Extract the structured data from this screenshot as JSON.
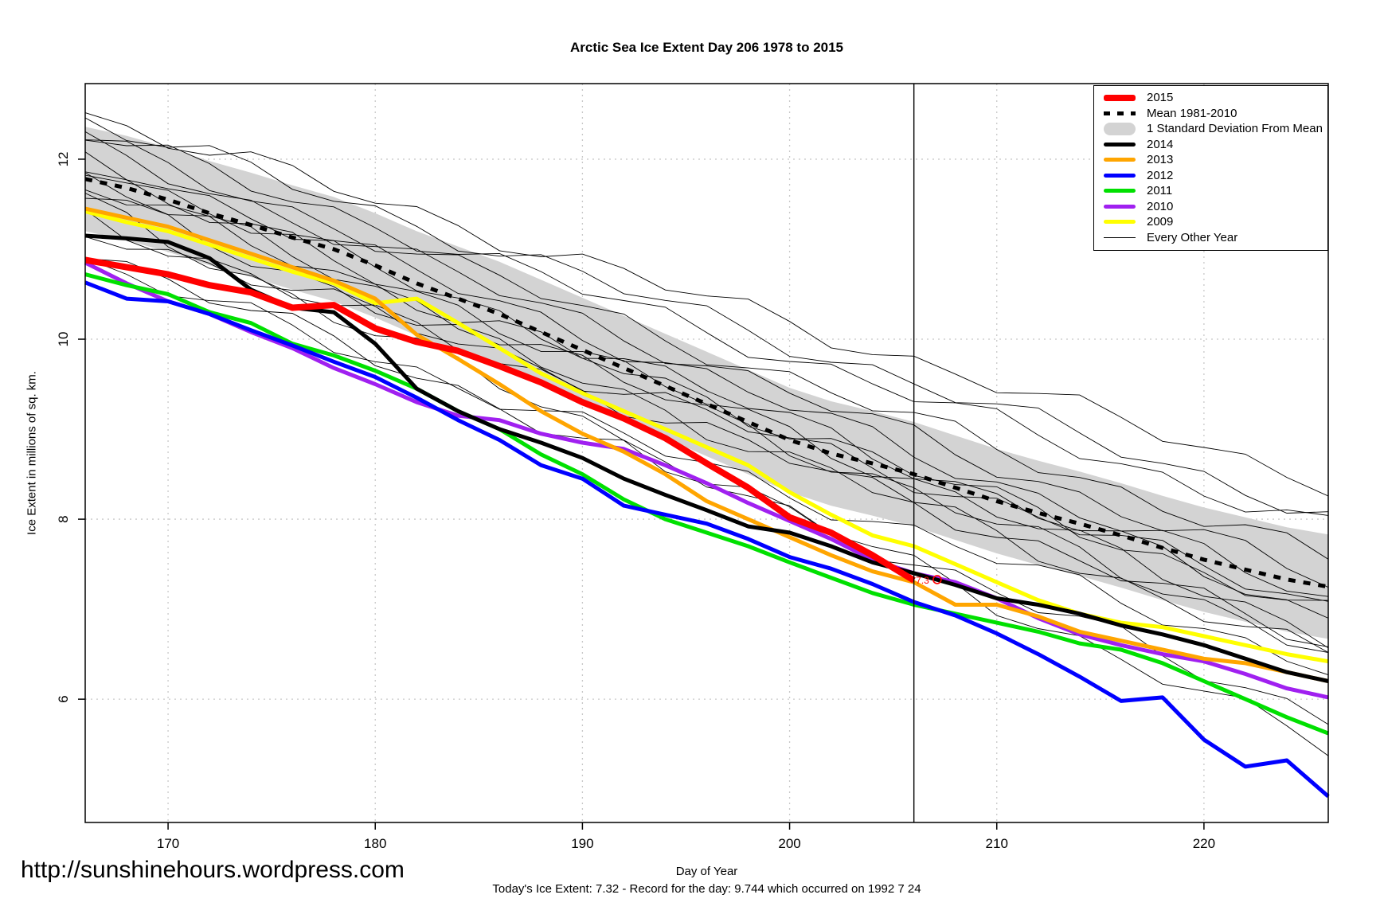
{
  "page": {
    "title": "Arctic Sea Ice Extent Day 206 1978 to 2015",
    "url_watermark": "http://sunshinehours.wordpress.com",
    "footer_note": "Today's Ice Extent: 7.32  - Record for the day: 9.744 which occurred on 1992 7 24"
  },
  "chart_data": {
    "type": "line",
    "title": "Arctic Sea Ice Extent Day 206 1978 to 2015",
    "xlabel": "Day of Year",
    "ylabel": "Ice Extent in millions of sq. km.",
    "xlim": [
      166,
      226
    ],
    "ylim": [
      4.63,
      12.84
    ],
    "xticks": [
      170,
      180,
      190,
      200,
      210,
      220
    ],
    "yticks": [
      6,
      8,
      10,
      12
    ],
    "grid": "dotted",
    "grid_color": "#c8c8c8",
    "vline_x": 206,
    "annotation": {
      "label": "7.3",
      "x": 206.2,
      "y": 7.32,
      "color": "#ff0000",
      "marker": "open-circle"
    },
    "days": [
      166,
      168,
      170,
      172,
      174,
      176,
      178,
      180,
      182,
      184,
      186,
      188,
      190,
      192,
      194,
      196,
      198,
      200,
      202,
      204,
      206,
      208,
      210,
      212,
      214,
      216,
      218,
      220,
      222,
      224,
      226
    ],
    "series": [
      {
        "name": "2009",
        "color": "#ffff00",
        "width": 5,
        "values": [
          11.42,
          11.3,
          11.2,
          11.05,
          10.9,
          10.75,
          10.62,
          10.4,
          10.45,
          10.18,
          9.9,
          9.62,
          9.4,
          9.2,
          9.0,
          8.8,
          8.6,
          8.3,
          8.05,
          7.82,
          7.7,
          7.5,
          7.3,
          7.1,
          6.95,
          6.85,
          6.8,
          6.7,
          6.6,
          6.5,
          6.42
        ]
      },
      {
        "name": "2010",
        "color": "#a020f0",
        "width": 5,
        "values": [
          10.85,
          10.62,
          10.42,
          10.28,
          10.08,
          9.9,
          9.68,
          9.5,
          9.3,
          9.15,
          9.1,
          8.95,
          8.85,
          8.78,
          8.6,
          8.4,
          8.18,
          7.98,
          7.78,
          7.55,
          7.4,
          7.3,
          7.12,
          6.9,
          6.72,
          6.6,
          6.5,
          6.42,
          6.28,
          6.12,
          6.02
        ]
      },
      {
        "name": "2011",
        "color": "#00e000",
        "width": 5,
        "values": [
          10.72,
          10.6,
          10.5,
          10.3,
          10.18,
          9.95,
          9.82,
          9.65,
          9.45,
          9.2,
          9.0,
          8.72,
          8.5,
          8.22,
          8.0,
          7.85,
          7.7,
          7.52,
          7.35,
          7.18,
          7.05,
          6.95,
          6.85,
          6.75,
          6.62,
          6.55,
          6.4,
          6.2,
          6.0,
          5.8,
          5.62
        ]
      },
      {
        "name": "2012",
        "color": "#0000ff",
        "width": 5,
        "values": [
          10.63,
          10.45,
          10.42,
          10.28,
          10.1,
          9.93,
          9.75,
          9.58,
          9.35,
          9.1,
          8.88,
          8.6,
          8.45,
          8.15,
          8.05,
          7.95,
          7.78,
          7.58,
          7.45,
          7.28,
          7.08,
          6.93,
          6.73,
          6.5,
          6.25,
          5.98,
          6.02,
          5.55,
          5.25,
          5.32,
          4.92
        ]
      },
      {
        "name": "2013",
        "color": "#ffa500",
        "width": 5,
        "values": [
          11.45,
          11.35,
          11.25,
          11.1,
          10.95,
          10.8,
          10.65,
          10.45,
          10.05,
          9.78,
          9.5,
          9.2,
          8.95,
          8.75,
          8.5,
          8.2,
          8.0,
          7.8,
          7.6,
          7.42,
          7.3,
          7.05,
          7.05,
          6.92,
          6.75,
          6.65,
          6.55,
          6.45,
          6.4,
          6.3,
          6.2
        ]
      },
      {
        "name": "2014",
        "color": "#000000",
        "width": 5,
        "values": [
          11.15,
          11.12,
          11.08,
          10.9,
          10.55,
          10.35,
          10.3,
          9.95,
          9.45,
          9.2,
          9.0,
          8.85,
          8.68,
          8.45,
          8.27,
          8.1,
          7.92,
          7.85,
          7.7,
          7.52,
          7.4,
          7.27,
          7.12,
          7.05,
          6.95,
          6.82,
          6.72,
          6.6,
          6.45,
          6.3,
          6.2
        ]
      },
      {
        "name": "2015",
        "color": "#ff0000",
        "width": 8,
        "values": [
          10.88,
          10.8,
          10.72,
          10.6,
          10.52,
          10.35,
          10.38,
          10.12,
          9.97,
          9.87,
          9.7,
          9.52,
          9.3,
          9.12,
          8.9,
          8.62,
          8.35,
          8.02,
          7.85,
          7.6,
          7.32,
          null,
          null,
          null,
          null,
          null,
          null,
          null,
          null,
          null,
          null
        ]
      }
    ],
    "mean_series": {
      "name": "Mean 1981-2010",
      "color": "#000000",
      "width": 5,
      "dash": "9 10",
      "values": [
        11.78,
        11.68,
        11.55,
        11.4,
        11.27,
        11.13,
        11.0,
        10.82,
        10.62,
        10.45,
        10.28,
        10.08,
        9.88,
        9.68,
        9.48,
        9.28,
        9.08,
        8.88,
        8.73,
        8.62,
        8.5,
        8.35,
        8.2,
        8.07,
        7.95,
        7.82,
        7.68,
        7.55,
        7.44,
        7.33,
        7.25
      ]
    },
    "band": {
      "name": "1 Standard Deviation From Mean",
      "color": "#d3d3d3",
      "sd": 0.58
    },
    "other_years": {
      "name": "Every Other Year",
      "color": "#000000",
      "width": 0.9,
      "lines": [
        {
          "start": 12.5,
          "end": 8.4
        },
        {
          "start": 12.45,
          "end": 8.05
        },
        {
          "start": 12.3,
          "end": 7.9
        },
        {
          "start": 12.2,
          "end": 7.55
        },
        {
          "start": 12.15,
          "end": 7.3
        },
        {
          "start": 12.05,
          "end": 7.1
        },
        {
          "start": 11.95,
          "end": 6.9
        },
        {
          "start": 11.9,
          "end": 6.7
        },
        {
          "start": 11.8,
          "end": 6.55
        },
        {
          "start": 11.7,
          "end": 6.95
        },
        {
          "start": 11.6,
          "end": 6.45
        },
        {
          "start": 11.5,
          "end": 5.45
        },
        {
          "start": 11.35,
          "end": 6.6
        },
        {
          "start": 11.25,
          "end": 7.05
        },
        {
          "start": 11.0,
          "end": 5.8
        },
        {
          "start": 10.85,
          "end": 6.35
        }
      ]
    },
    "legend": [
      {
        "label": "2015",
        "swatch": "line",
        "color": "#ff0000",
        "thickness": 8
      },
      {
        "label": "Mean 1981-2010",
        "swatch": "dashed",
        "color": "#000000",
        "thickness": 5
      },
      {
        "label": "1 Standard Deviation From Mean",
        "swatch": "band",
        "color": "#d3d3d3",
        "thickness": 16
      },
      {
        "label": "2014",
        "swatch": "line",
        "color": "#000000",
        "thickness": 5
      },
      {
        "label": "2013",
        "swatch": "line",
        "color": "#ffa500",
        "thickness": 5
      },
      {
        "label": "2012",
        "swatch": "line",
        "color": "#0000ff",
        "thickness": 5
      },
      {
        "label": "2011",
        "swatch": "line",
        "color": "#00e000",
        "thickness": 5
      },
      {
        "label": "2010",
        "swatch": "line",
        "color": "#a020f0",
        "thickness": 5
      },
      {
        "label": "2009",
        "swatch": "line",
        "color": "#ffff00",
        "thickness": 5
      },
      {
        "label": "Every Other Year",
        "swatch": "thinline",
        "color": "#000000",
        "thickness": 1
      }
    ]
  }
}
